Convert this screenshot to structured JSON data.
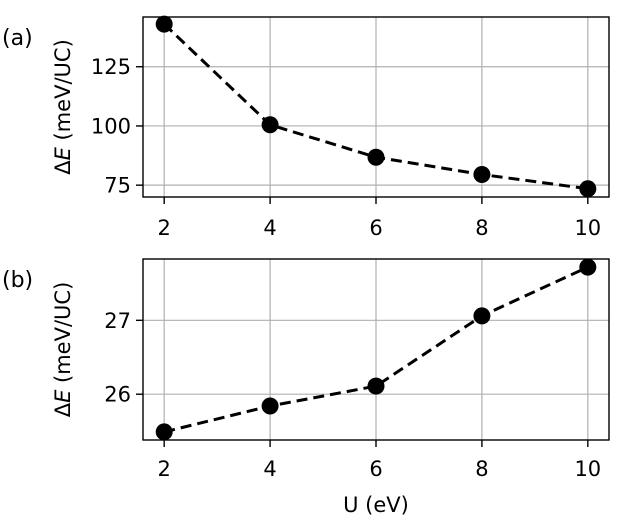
{
  "chart_data": [
    {
      "type": "line",
      "panel_label": "(a)",
      "x": [
        2,
        4,
        6,
        8,
        10
      ],
      "series": [
        {
          "values": [
            143,
            100.5,
            86.8,
            79.5,
            73.5
          ]
        }
      ],
      "xlabel": "",
      "ylabel": "ΔE (meV/UC)",
      "xlim": [
        1.6,
        10.4
      ],
      "ylim": [
        70,
        146
      ],
      "xticks": [
        2,
        4,
        6,
        8,
        10
      ],
      "yticks": [
        75,
        100,
        125
      ],
      "grid": true,
      "line_style": "dashed",
      "marker": "circle",
      "color": "#000000"
    },
    {
      "type": "line",
      "panel_label": "(b)",
      "x": [
        2,
        4,
        6,
        8,
        10
      ],
      "series": [
        {
          "values": [
            25.49,
            25.84,
            26.11,
            27.06,
            27.72
          ]
        }
      ],
      "xlabel": "U (eV)",
      "ylabel": "ΔE (meV/UC)",
      "xlim": [
        1.6,
        10.4
      ],
      "ylim": [
        25.38,
        27.83
      ],
      "xticks": [
        2,
        4,
        6,
        8,
        10
      ],
      "yticks": [
        26,
        27
      ],
      "grid": true,
      "line_style": "dashed",
      "marker": "circle",
      "color": "#000000"
    }
  ]
}
